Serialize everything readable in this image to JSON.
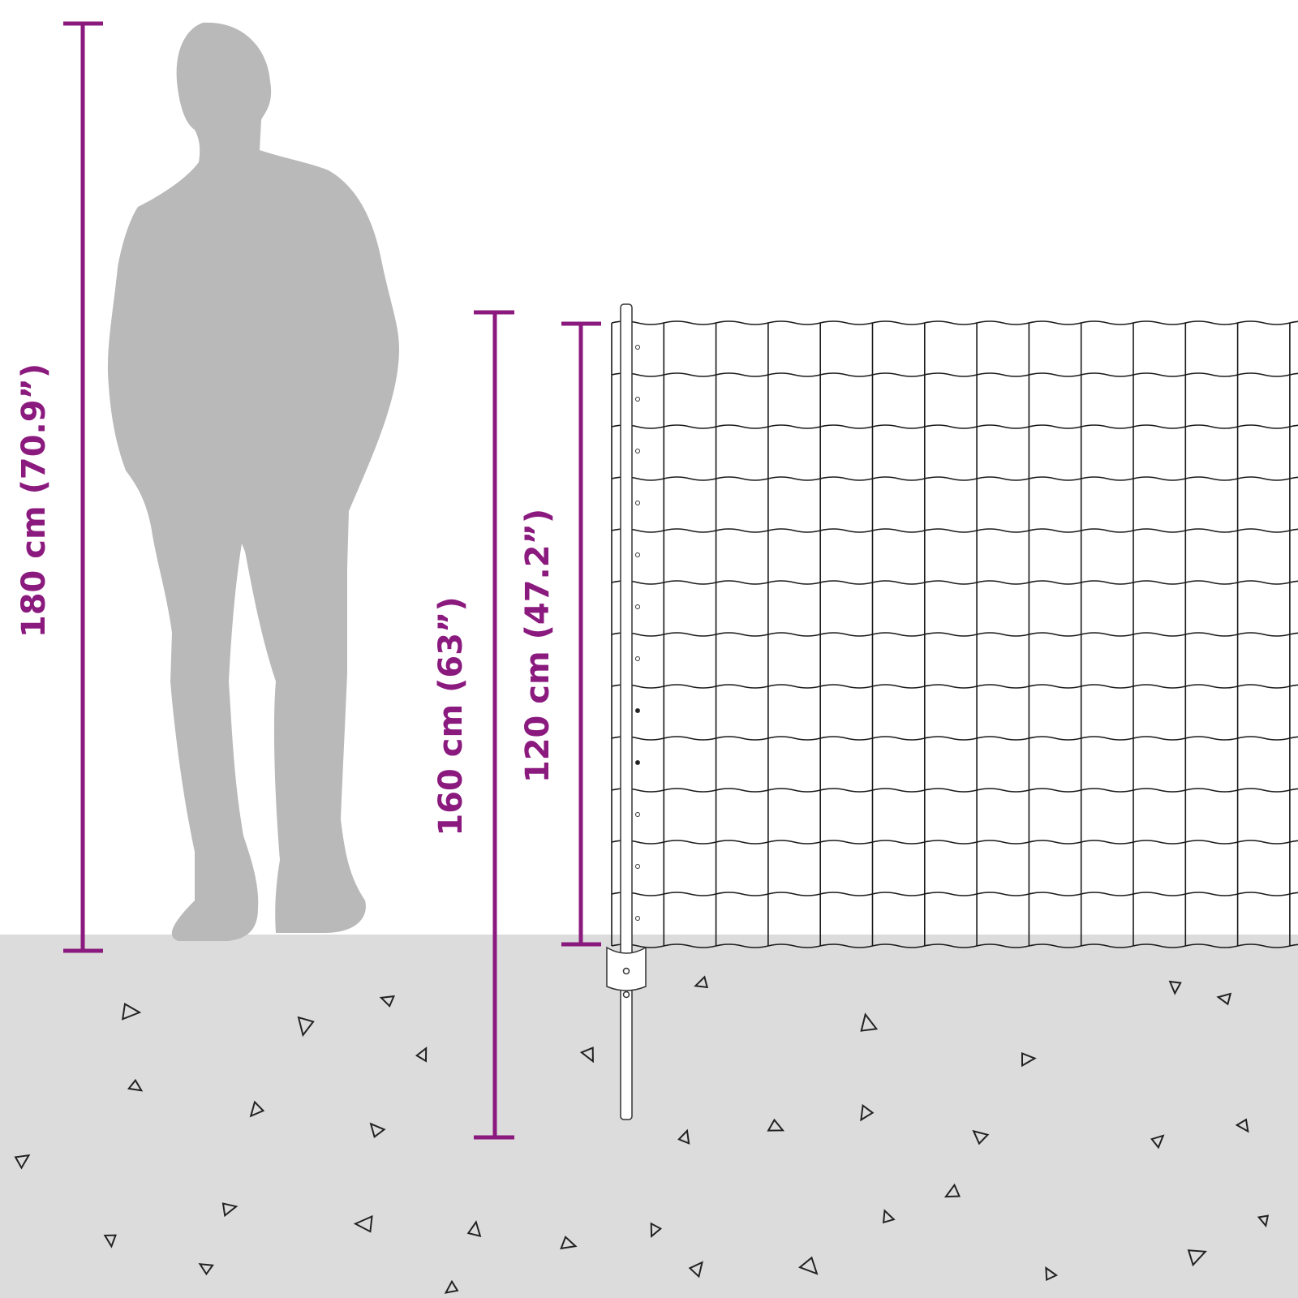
{
  "colors": {
    "dimension": "#8b1a7e",
    "ground": "#dcdcdc",
    "person": "#b9b9b9",
    "wire": "#1a1a1a"
  },
  "dimensions": {
    "person_height": "180 cm (70.9”)",
    "post_height": "160 cm (63”)",
    "fence_height": "120 cm (47.2”)"
  }
}
